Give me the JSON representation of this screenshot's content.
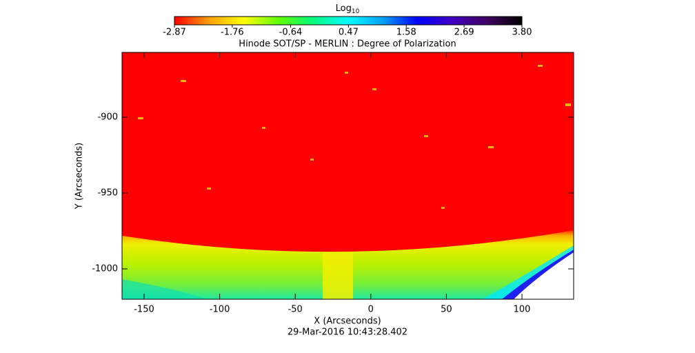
{
  "chart_data": {
    "type": "image",
    "title": "Hinode SOT/SP - MERLIN : Degree of Polarization",
    "x_label": "X (Arcseconds)",
    "y_label": "Y (Arcseconds)",
    "date": "29-Mar-2016 10:43:28.402",
    "xlim": [
      -164.6,
      134.2
    ],
    "xticks": [
      -150,
      -100,
      -50,
      0,
      50,
      100
    ],
    "ylim": [
      -1020,
      -857.3
    ],
    "yticks": [
      -1000,
      -950,
      -900
    ],
    "colorbar": {
      "label": "Log",
      "label_sub": "10",
      "lim": [
        -2.87,
        3.8
      ],
      "ticks": [
        -2.87,
        -1.76,
        -0.64,
        0.47,
        1.58,
        2.69,
        {
          "value": 3.8,
          "label": "3.80"
        }
      ],
      "colormap": [
        "#ff0000",
        "#ffa000",
        "#ffff00",
        "#60ff00",
        "#00ff80",
        "#00ffff",
        "#00a0ff",
        "#0000ff",
        "#4000c0",
        "#400060",
        "#000000"
      ]
    }
  }
}
